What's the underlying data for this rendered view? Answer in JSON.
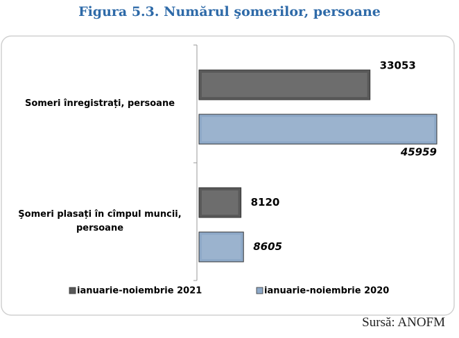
{
  "chart_data": {
    "type": "bar",
    "orientation": "horizontal",
    "title": "Figura  5.3. Numărul şomerilor, persoane",
    "categories": [
      "Someri înregistrați, persoane",
      "Şomeri plasați în cîmpul muncii, persoane"
    ],
    "series": [
      {
        "name": "ianuarie-noiembrie 2021",
        "color": "#595959",
        "values": [
          33053,
          8120
        ]
      },
      {
        "name": "ianuarie-noiembrie 2020",
        "color": "#8ea9c8",
        "values": [
          45959,
          8605
        ]
      }
    ],
    "source": "Sursă: ANOFM"
  }
}
